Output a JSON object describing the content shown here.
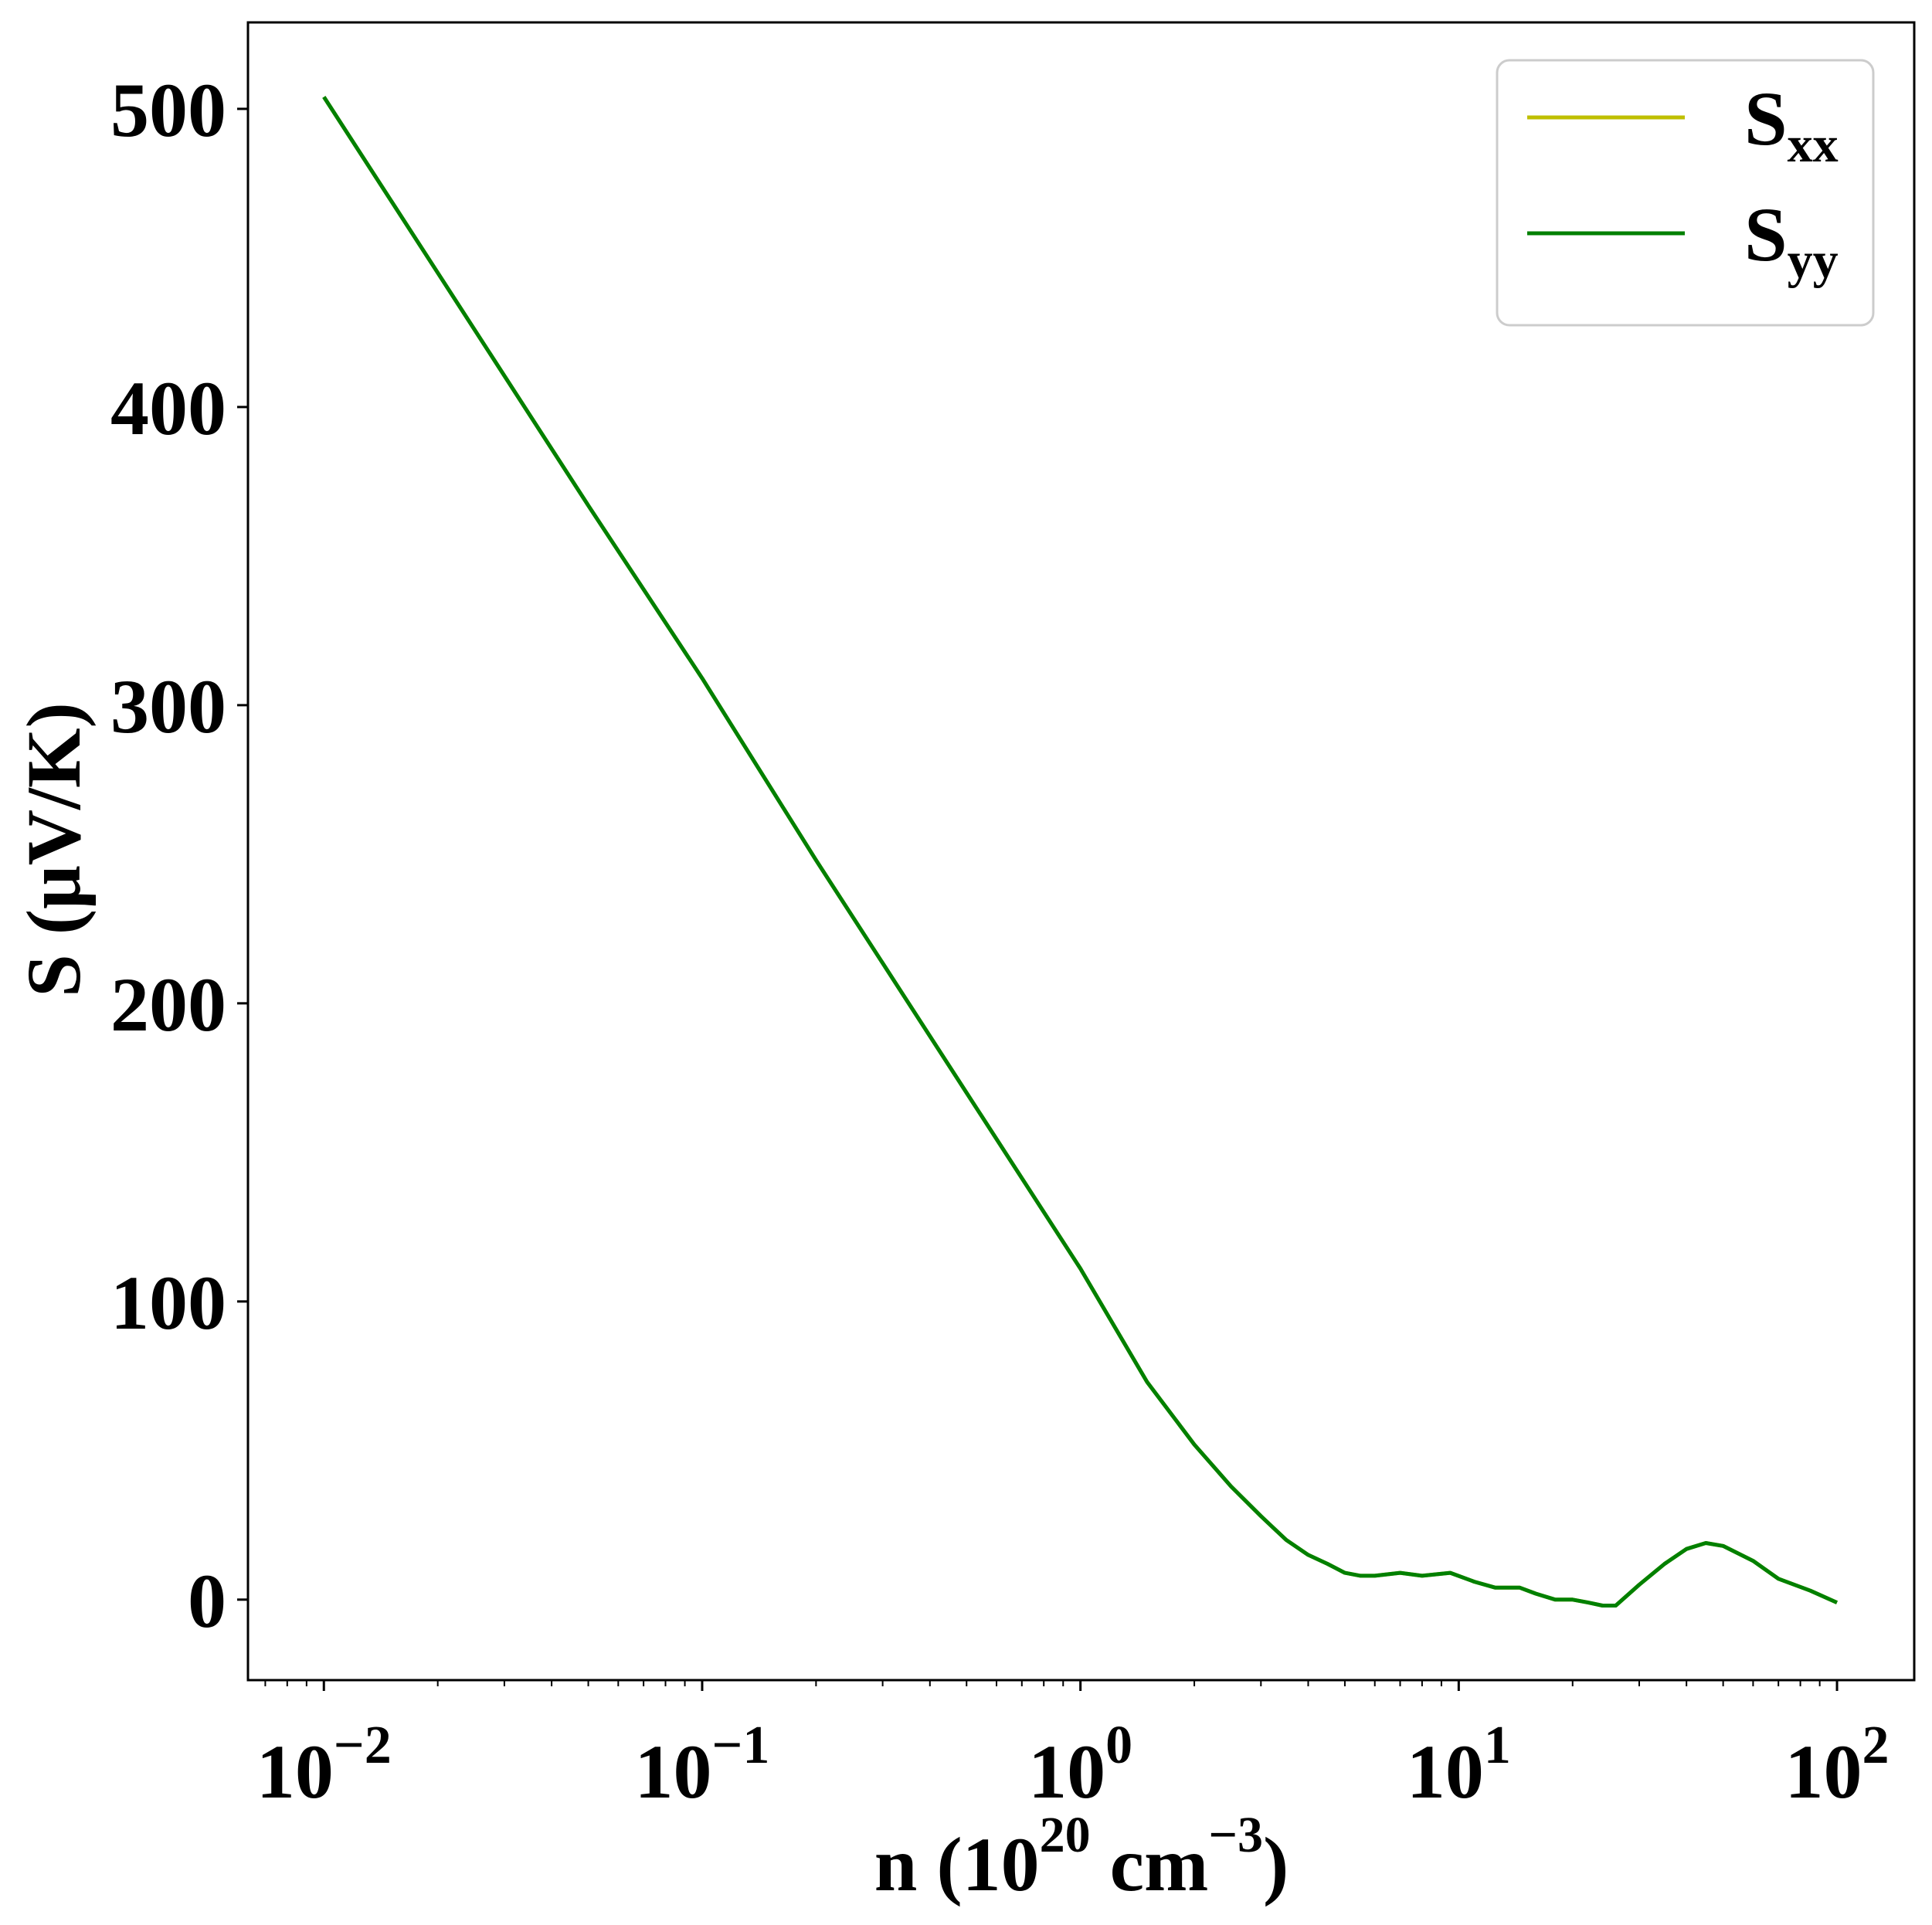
{
  "chart_data": {
    "type": "line",
    "xscale": "log",
    "xlim": [
      0.0063,
      160
    ],
    "ylim": [
      -27,
      529
    ],
    "xlabel": {
      "base": "n (10",
      "exp1": "20",
      "mid": " cm",
      "exp2": "−3",
      "end": ")"
    },
    "ylabel": "S (μV/K)",
    "yticks": [
      0,
      100,
      200,
      300,
      400,
      500
    ],
    "ytick_labels": [
      "0",
      "100",
      "200",
      "300",
      "400",
      "500"
    ],
    "xticks": [
      {
        "value": 0.01,
        "base": "10",
        "exp": "−2"
      },
      {
        "value": 0.1,
        "base": "10",
        "exp": "−1"
      },
      {
        "value": 1,
        "base": "10",
        "exp": "0"
      },
      {
        "value": 10,
        "base": "10",
        "exp": "1"
      },
      {
        "value": 100,
        "base": "10",
        "exp": "2"
      }
    ],
    "legend": {
      "placement": "upper right",
      "entries": [
        {
          "main": "S",
          "sub": "xx",
          "color": "#bfbf00"
        },
        {
          "main": "S",
          "sub": "yy",
          "color": "#008000"
        }
      ]
    },
    "series": [
      {
        "color": "#bfbf00",
        "x": [
          0.01,
          0.02,
          0.05,
          0.1,
          0.2,
          0.5,
          1.0,
          1.5,
          2.0,
          2.5,
          3.0,
          3.5,
          4.0,
          4.5,
          5.0,
          5.5,
          6.0,
          7.0,
          8.0,
          9.5,
          11.0,
          12.5,
          14.5,
          16.0,
          18.0,
          20.0,
          22.0,
          24.0,
          26.0,
          30.0,
          35.0,
          40.0,
          45.0,
          50.0,
          60.0,
          70.0,
          85.0,
          100.0
        ],
        "y": [
          504,
          445,
          367,
          309,
          248,
          170,
          111,
          73,
          52,
          38,
          28,
          20,
          15,
          12,
          9,
          8,
          8,
          9,
          8,
          9,
          6,
          4,
          4,
          2,
          0,
          0,
          -1,
          -2,
          -2,
          5,
          12,
          17,
          19,
          18,
          13,
          7,
          3,
          -1
        ]
      },
      {
        "color": "#008000",
        "x": [
          0.01,
          0.02,
          0.05,
          0.1,
          0.2,
          0.5,
          1.0,
          1.5,
          2.0,
          2.5,
          3.0,
          3.5,
          4.0,
          4.5,
          5.0,
          5.5,
          6.0,
          7.0,
          8.0,
          9.5,
          11.0,
          12.5,
          14.5,
          16.0,
          18.0,
          20.0,
          22.0,
          24.0,
          26.0,
          30.0,
          35.0,
          40.0,
          45.0,
          50.0,
          60.0,
          70.0,
          85.0,
          100.0
        ],
        "y": [
          504,
          445,
          367,
          309,
          248,
          170,
          111,
          73,
          52,
          38,
          28,
          20,
          15,
          12,
          9,
          8,
          8,
          9,
          8,
          9,
          6,
          4,
          4,
          2,
          0,
          0,
          -1,
          -2,
          -2,
          5,
          12,
          17,
          19,
          18,
          13,
          7,
          3,
          -1
        ]
      }
    ]
  }
}
